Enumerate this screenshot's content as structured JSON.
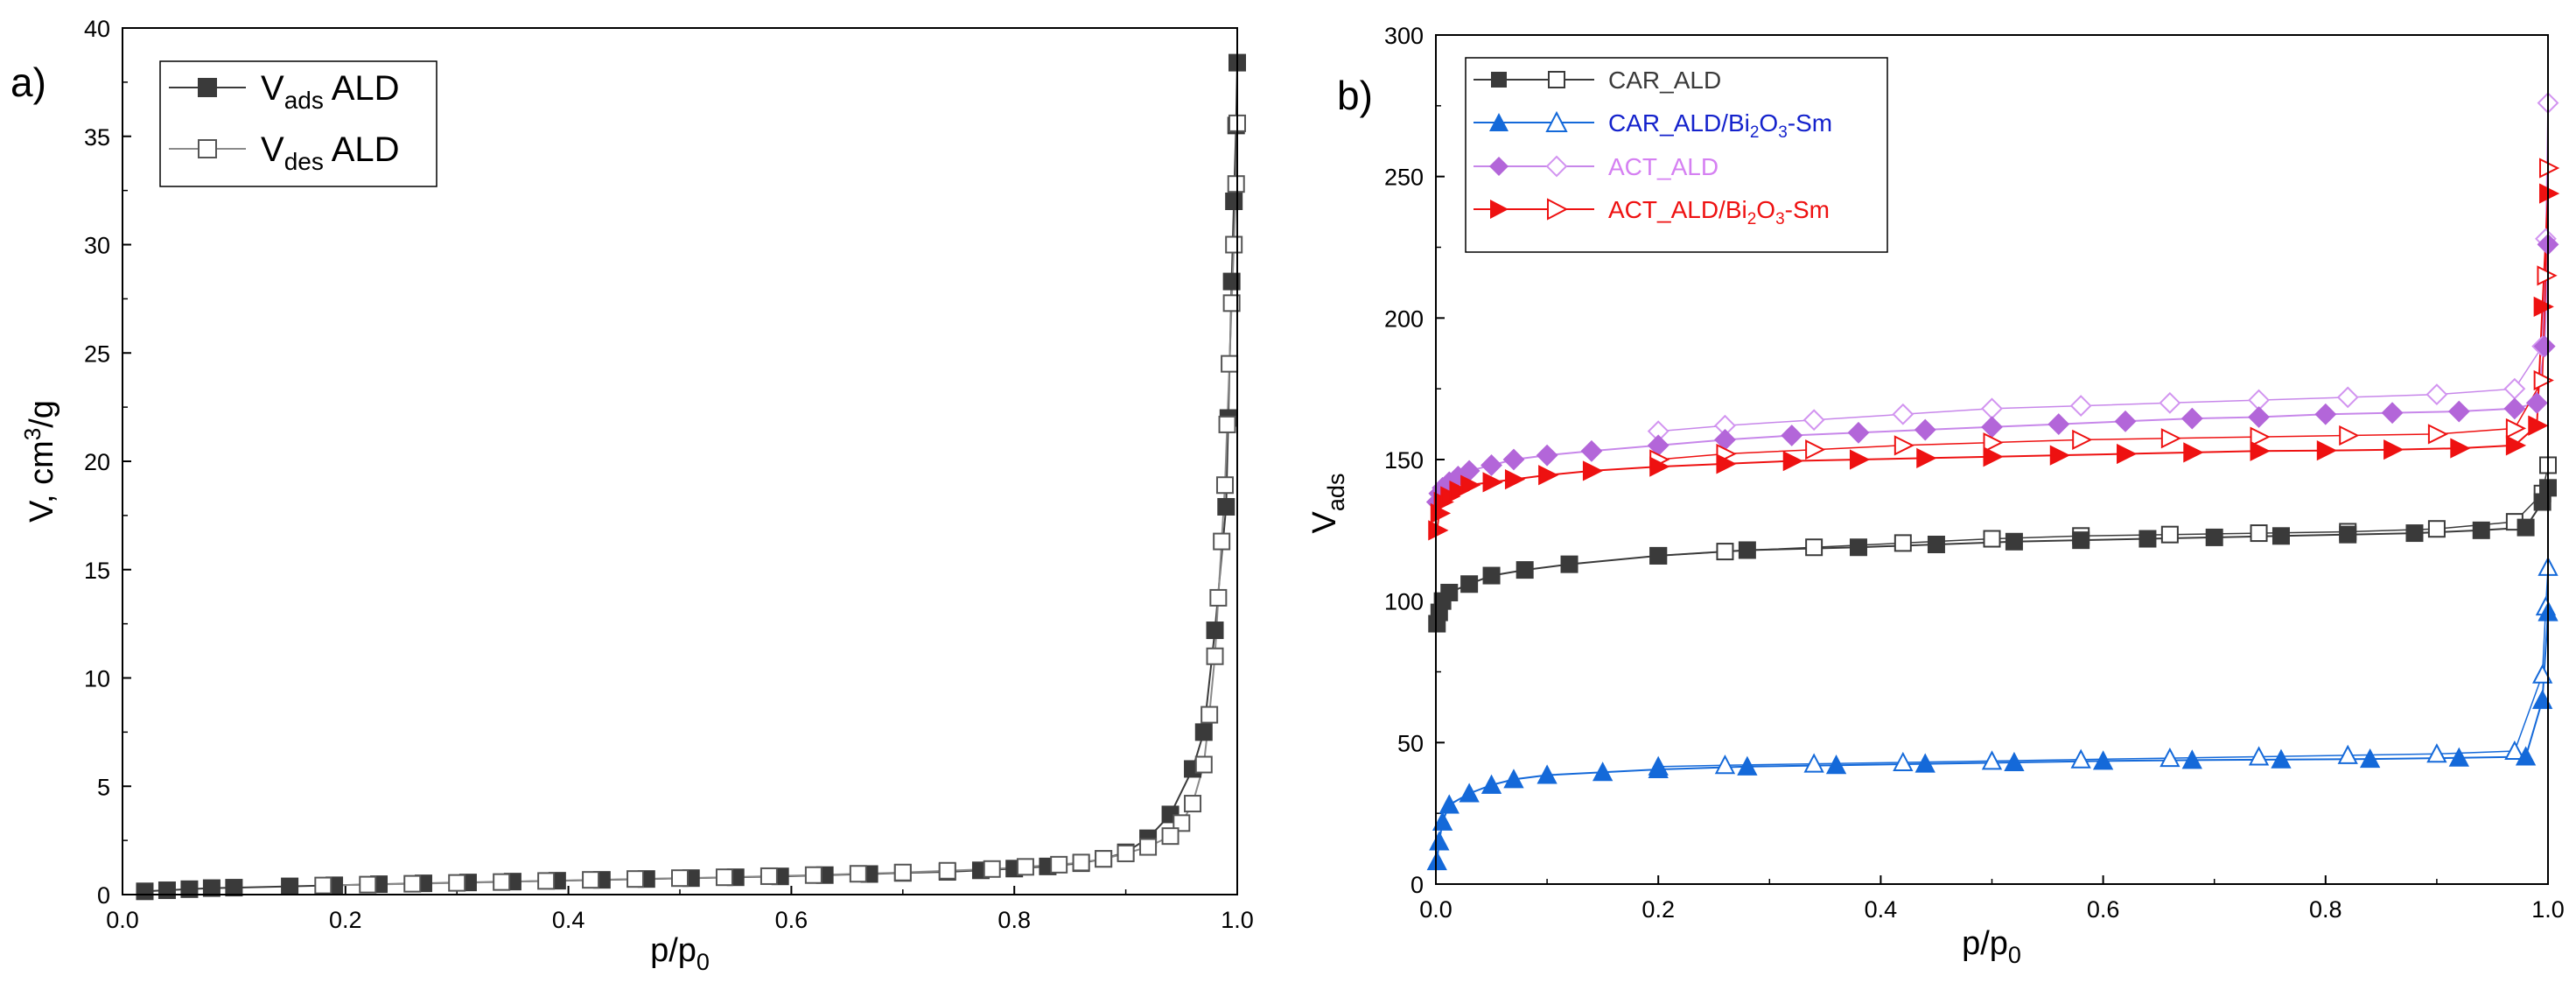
{
  "chart_data": [
    {
      "type": "line",
      "panel_label": "a)",
      "xlabel": "p/p",
      "xlabel_sub": "0",
      "ylabel": "V, cm",
      "ylabel_sup": "3",
      "ylabel_tail": "/g",
      "xlim": [
        0.0,
        1.0
      ],
      "ylim": [
        0,
        40
      ],
      "x_ticks": [
        "0.0",
        "0.2",
        "0.4",
        "0.6",
        "0.8",
        "1.0"
      ],
      "y_ticks": [
        "0",
        "5",
        "10",
        "15",
        "20",
        "25",
        "30",
        "35",
        "40"
      ],
      "legend_position": "top-left",
      "series": [
        {
          "name": "V",
          "name_sub": "ads",
          "name_tail": " ALD",
          "color": "#3a3a3a",
          "marker": "square-filled",
          "x": [
            0.02,
            0.04,
            0.06,
            0.08,
            0.1,
            0.15,
            0.19,
            0.23,
            0.27,
            0.31,
            0.35,
            0.39,
            0.43,
            0.47,
            0.51,
            0.55,
            0.59,
            0.63,
            0.67,
            0.7,
            0.74,
            0.77,
            0.8,
            0.83,
            0.86,
            0.88,
            0.9,
            0.92,
            0.94,
            0.96,
            0.97,
            0.98,
            0.99,
            0.992,
            0.995,
            0.997,
            0.999,
            1.0
          ],
          "y": [
            0.15,
            0.2,
            0.25,
            0.3,
            0.32,
            0.38,
            0.43,
            0.48,
            0.52,
            0.56,
            0.6,
            0.64,
            0.68,
            0.72,
            0.76,
            0.8,
            0.84,
            0.9,
            0.95,
            1.0,
            1.05,
            1.12,
            1.2,
            1.3,
            1.45,
            1.65,
            1.95,
            2.6,
            3.7,
            5.8,
            7.5,
            12.2,
            17.9,
            22.0,
            28.3,
            32.0,
            35.5,
            38.4
          ]
        },
        {
          "name": "V",
          "name_sub": "des",
          "name_tail": " ALD",
          "color": "#555555",
          "marker": "square-open",
          "x": [
            1.0,
            0.999,
            0.997,
            0.995,
            0.993,
            0.991,
            0.989,
            0.986,
            0.983,
            0.98,
            0.975,
            0.97,
            0.96,
            0.95,
            0.94,
            0.92,
            0.9,
            0.88,
            0.86,
            0.84,
            0.81,
            0.78,
            0.74,
            0.7,
            0.66,
            0.62,
            0.58,
            0.54,
            0.5,
            0.46,
            0.42,
            0.38,
            0.34,
            0.3,
            0.26,
            0.22,
            0.18
          ],
          "y": [
            35.6,
            32.8,
            30.0,
            27.3,
            24.5,
            21.7,
            18.9,
            16.3,
            13.7,
            11.0,
            8.3,
            6.0,
            4.2,
            3.3,
            2.7,
            2.2,
            1.9,
            1.65,
            1.48,
            1.38,
            1.28,
            1.18,
            1.1,
            1.02,
            0.96,
            0.9,
            0.85,
            0.8,
            0.76,
            0.72,
            0.68,
            0.63,
            0.58,
            0.54,
            0.5,
            0.46,
            0.42
          ]
        }
      ]
    },
    {
      "type": "line",
      "panel_label": "b)",
      "xlabel": "p/p",
      "xlabel_sub": "0",
      "ylabel": "V",
      "ylabel_sub": "ads",
      "xlim": [
        0.0,
        1.0
      ],
      "ylim": [
        0,
        300
      ],
      "x_ticks": [
        "0.0",
        "0.2",
        "0.4",
        "0.6",
        "0.8",
        "1.0"
      ],
      "y_ticks": [
        "0",
        "50",
        "100",
        "150",
        "200",
        "250",
        "300"
      ],
      "legend_position": "top-left",
      "series": [
        {
          "name": "CAR_ALD",
          "color": "#3a3a3a",
          "x_ads": [
            0.001,
            0.003,
            0.006,
            0.012,
            0.03,
            0.05,
            0.08,
            0.12,
            0.2,
            0.28,
            0.38,
            0.45,
            0.52,
            0.58,
            0.64,
            0.7,
            0.76,
            0.82,
            0.88,
            0.94,
            0.98,
            0.995,
            1.0
          ],
          "y_ads": [
            92,
            96,
            100,
            103,
            106,
            109,
            111,
            113,
            116,
            118,
            119,
            120,
            121,
            121.5,
            122,
            122.5,
            123,
            123.5,
            124,
            125,
            126,
            135,
            140
          ],
          "x_des": [
            1.0,
            0.995,
            0.97,
            0.9,
            0.82,
            0.74,
            0.66,
            0.58,
            0.5,
            0.42,
            0.34,
            0.26,
            0.2
          ],
          "y_des": [
            148,
            138,
            128,
            125.5,
            124.5,
            124,
            123.5,
            123,
            122,
            120.5,
            119,
            117.5,
            116
          ]
        },
        {
          "name": "CAR_ALD/Bi",
          "name_sub1": "2",
          "name_mid": "O",
          "name_sub2": "3",
          "name_tail": "-Sm",
          "color": "#1469d9",
          "x_ads": [
            0.001,
            0.003,
            0.006,
            0.012,
            0.03,
            0.05,
            0.07,
            0.1,
            0.15,
            0.2,
            0.28,
            0.36,
            0.44,
            0.52,
            0.6,
            0.68,
            0.76,
            0.84,
            0.92,
            0.98,
            0.995,
            1.0
          ],
          "y_ads": [
            8,
            15,
            22,
            28,
            32,
            35,
            37,
            38.5,
            39.5,
            40.5,
            41.5,
            42,
            42.5,
            43,
            43.5,
            43.8,
            44,
            44.2,
            44.6,
            45,
            65,
            96
          ],
          "x_des": [
            1.0,
            0.998,
            0.995,
            0.97,
            0.9,
            0.82,
            0.74,
            0.66,
            0.58,
            0.5,
            0.42,
            0.34,
            0.26,
            0.2
          ],
          "y_des": [
            112,
            98,
            74,
            47,
            46,
            45.5,
            45,
            44.5,
            44,
            43.5,
            43,
            42.5,
            42,
            41.5
          ]
        },
        {
          "name": "ACT_ALD",
          "color": "#b366d9",
          "x_ads": [
            0.001,
            0.003,
            0.006,
            0.012,
            0.02,
            0.03,
            0.05,
            0.07,
            0.1,
            0.14,
            0.2,
            0.26,
            0.32,
            0.38,
            0.44,
            0.5,
            0.56,
            0.62,
            0.68,
            0.74,
            0.8,
            0.86,
            0.92,
            0.97,
            0.99,
            0.997,
            1.0
          ],
          "y_ads": [
            135,
            138,
            140,
            142,
            144,
            146,
            148,
            150,
            151.5,
            153,
            155,
            157,
            158.5,
            159.5,
            160.5,
            161.5,
            162.5,
            163.5,
            164.5,
            165,
            166,
            166.5,
            167,
            168,
            170,
            190,
            226
          ],
          "x_des": [
            1.0,
            0.998,
            0.995,
            0.97,
            0.9,
            0.82,
            0.74,
            0.66,
            0.58,
            0.5,
            0.42,
            0.34,
            0.26,
            0.2
          ],
          "y_des": [
            276,
            228,
            190,
            175,
            173,
            172,
            171,
            170,
            169,
            168,
            166,
            164,
            162,
            160
          ]
        },
        {
          "name": "ACT_ALD/Bi",
          "name_sub1": "2",
          "name_mid": "O",
          "name_sub2": "3",
          "name_tail": "-Sm",
          "color": "#ee1111",
          "x_ads": [
            0.001,
            0.003,
            0.006,
            0.012,
            0.02,
            0.03,
            0.05,
            0.07,
            0.1,
            0.14,
            0.2,
            0.26,
            0.32,
            0.38,
            0.44,
            0.5,
            0.56,
            0.62,
            0.68,
            0.74,
            0.8,
            0.86,
            0.92,
            0.97,
            0.99,
            0.995,
            1.0
          ],
          "y_ads": [
            125,
            131,
            135,
            137,
            139,
            141,
            142,
            143,
            144.5,
            146,
            147.5,
            148.5,
            149.5,
            150,
            150.5,
            151,
            151.5,
            152,
            152.5,
            153,
            153.2,
            153.5,
            154,
            155,
            162,
            204,
            244
          ],
          "x_des": [
            1.0,
            0.998,
            0.995,
            0.97,
            0.9,
            0.82,
            0.74,
            0.66,
            0.58,
            0.5,
            0.42,
            0.34,
            0.26,
            0.2
          ],
          "y_des": [
            253,
            215,
            178,
            161,
            159,
            158.5,
            158,
            157.5,
            157,
            156,
            155,
            153.5,
            152,
            150
          ]
        }
      ]
    }
  ]
}
